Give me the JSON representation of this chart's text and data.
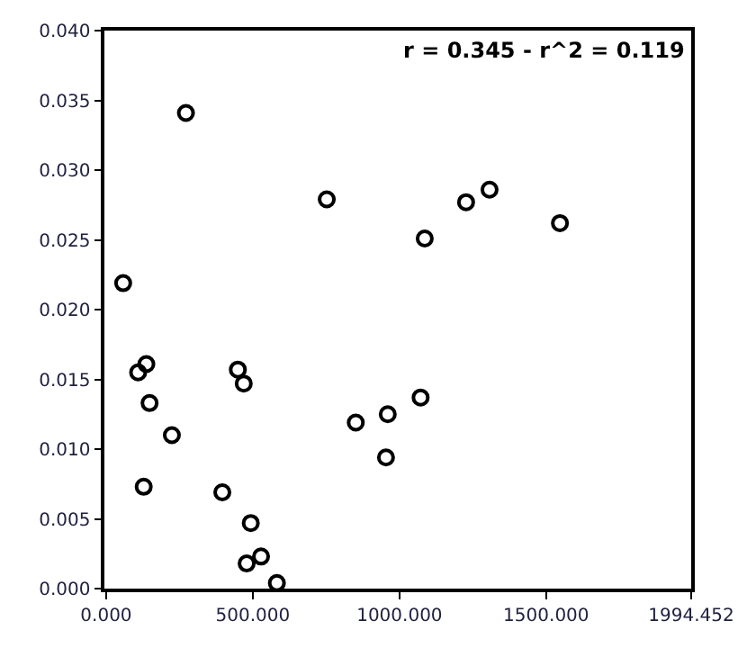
{
  "chart_data": {
    "type": "scatter",
    "annotations": [
      "r = 0.345 - r^2 = 0.119"
    ],
    "x": [
      58,
      272,
      752,
      109,
      137,
      148,
      224,
      128,
      449,
      469,
      396,
      493,
      479,
      528,
      582,
      851,
      960,
      954,
      1072,
      1086,
      1227,
      1307,
      1547
    ],
    "series": [
      {
        "color": "#000000",
        "values": [
          0.0219,
          0.0341,
          0.0279,
          0.0155,
          0.0161,
          0.0133,
          0.011,
          0.0073,
          0.0157,
          0.0147,
          0.0069,
          0.0047,
          0.0018,
          0.0023,
          0.0004,
          0.0119,
          0.0125,
          0.0094,
          0.0137,
          0.0251,
          0.0277,
          0.0286,
          0.0262
        ]
      }
    ],
    "xlim": [
      -6,
      1994.452
    ],
    "xticks": [
      {
        "value": 0,
        "label": "0.000"
      },
      {
        "value": 500,
        "label": "500.000"
      },
      {
        "value": 1000,
        "label": "1000.000"
      },
      {
        "value": 1500,
        "label": "1500.000"
      },
      1994.452
    ],
    "ylim": [
      0,
      0.04
    ],
    "yticks": [
      {
        "value": 0,
        "label": "0.000"
      },
      {
        "value": 0.005,
        "label": "0.005"
      },
      {
        "value": 0.01,
        "label": "0.010"
      },
      {
        "value": 0.015,
        "label": "0.015"
      },
      {
        "value": 0.02,
        "label": "0.020"
      },
      {
        "value": 0.025,
        "label": "0.025"
      },
      {
        "value": 0.03,
        "label": "0.030"
      },
      {
        "value": 0.035,
        "label": "0.035"
      },
      {
        "value": 0.04,
        "label": "0.040"
      }
    ],
    "marker": "circle"
  }
}
